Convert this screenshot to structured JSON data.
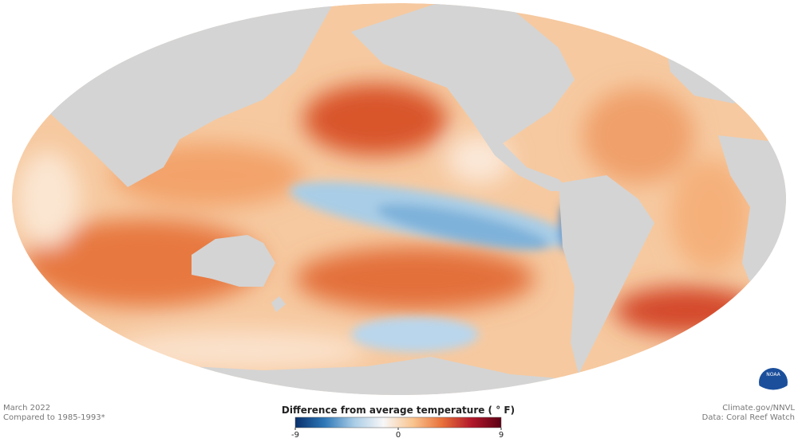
{
  "map": {
    "date": "March 2022",
    "baseline": "Compared to 1985-1993*",
    "credit": "Climate.gov/NNVL",
    "source": "Data: Coral Reef Watch",
    "logo": "NOAA"
  },
  "legend": {
    "title": "Difference from average temperature ( ° F)",
    "range": [
      -9,
      9
    ],
    "ticks": [
      -9,
      0,
      9
    ],
    "colors": [
      "#08306b",
      "#2f78b8",
      "#a9cde6",
      "#f7f7f7",
      "#f9c48f",
      "#e8703a",
      "#b2182b",
      "#5c0014"
    ]
  }
}
